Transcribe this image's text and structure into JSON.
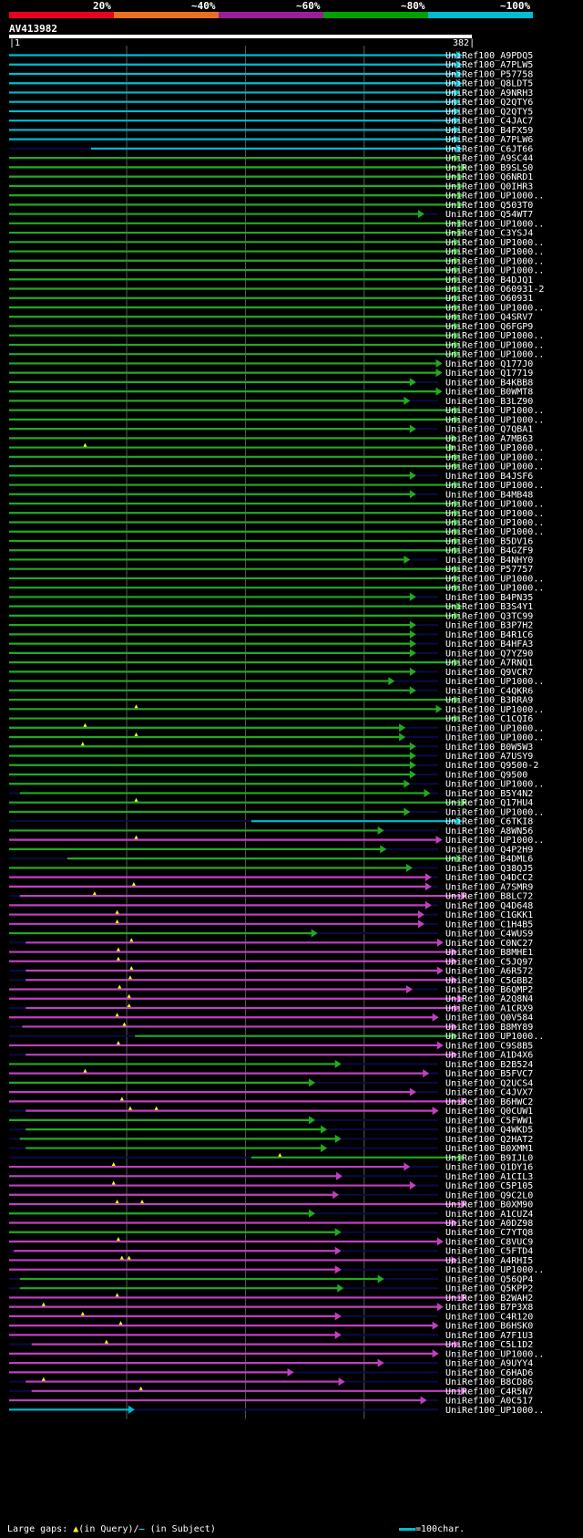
{
  "query": {
    "name": "AV413982",
    "start": "1",
    "end": "382"
  },
  "identity_scale": [
    {
      "label": "20%",
      "color": "#e8001c"
    },
    {
      "label": "~40%",
      "color": "#e87020"
    },
    {
      "label": "~60%",
      "color": "#9a1e9a"
    },
    {
      "label": "~80%",
      "color": "#00a000"
    },
    {
      "label": "~100%",
      "color": "#00bcd0"
    }
  ],
  "colors": {
    "cyan": "#00bcd0",
    "green": "#22aa22",
    "magenta": "#c040c0",
    "navy": "#0a0a48",
    "gap": "#ffff00",
    "grid": "#5a5a5a"
  },
  "footer": {
    "prefix": "Large gaps:",
    "q_text": "(in Query)/",
    "s_text": "(in Subject)",
    "scale_text": "=100char."
  },
  "chart_data": {
    "type": "alignment-map",
    "query_length": 382,
    "rows": [
      {
        "id": "UniRef100_A9PDQ5",
        "band": "cyan",
        "start": 1,
        "end": 382
      },
      {
        "id": "UniRef100_A7PLW5",
        "band": "cyan",
        "start": 1,
        "end": 382
      },
      {
        "id": "UniRef100_P57758",
        "band": "cyan",
        "start": 1,
        "end": 382
      },
      {
        "id": "UniRef100_Q8LDT5",
        "band": "cyan",
        "start": 1,
        "end": 382
      },
      {
        "id": "UniRef100_A9NRH3",
        "band": "cyan",
        "start": 1,
        "end": 380
      },
      {
        "id": "UniRef100_Q2QTY6",
        "band": "cyan",
        "start": 1,
        "end": 380
      },
      {
        "id": "UniRef100_Q2QTY5",
        "band": "cyan",
        "start": 1,
        "end": 380
      },
      {
        "id": "UniRef100_C4JAC7",
        "band": "cyan",
        "start": 1,
        "end": 380
      },
      {
        "id": "UniRef100_B4FX59",
        "band": "cyan",
        "start": 1,
        "end": 380
      },
      {
        "id": "UniRef100_A7PLW6",
        "band": "cyan",
        "start": 1,
        "end": 380
      },
      {
        "id": "UniRef100_C6JT66",
        "band": "cyan",
        "start": 70,
        "end": 382
      },
      {
        "id": "UniRef100_A9SC44",
        "band": "green",
        "start": 1,
        "end": 380
      },
      {
        "id": "UniRef100_B9SLS0",
        "band": "green",
        "start": 1,
        "end": 386
      },
      {
        "id": "UniRef100_Q6NRD1",
        "band": "green",
        "start": 1,
        "end": 383
      },
      {
        "id": "UniRef100_Q0IHR3",
        "band": "green",
        "start": 1,
        "end": 383
      },
      {
        "id": "UniRef100_UP1000..",
        "band": "green",
        "start": 1,
        "end": 383
      },
      {
        "id": "UniRef100_Q503T0",
        "band": "green",
        "start": 1,
        "end": 383
      },
      {
        "id": "UniRef100_Q54WT7",
        "band": "green",
        "start": 1,
        "end": 350
      },
      {
        "id": "UniRef100_UP1000..",
        "band": "green",
        "start": 1,
        "end": 383
      },
      {
        "id": "UniRef100_C3YSJ4",
        "band": "green",
        "start": 1,
        "end": 383
      },
      {
        "id": "UniRef100_UP1000..",
        "band": "green",
        "start": 1,
        "end": 380
      },
      {
        "id": "UniRef100_UP1000..",
        "band": "green",
        "start": 1,
        "end": 380
      },
      {
        "id": "UniRef100_UP1000..",
        "band": "green",
        "start": 1,
        "end": 380
      },
      {
        "id": "UniRef100_UP1000..",
        "band": "green",
        "start": 1,
        "end": 380
      },
      {
        "id": "UniRef100_B4DJQ1",
        "band": "green",
        "start": 1,
        "end": 380
      },
      {
        "id": "UniRef100_O60931-2",
        "band": "green",
        "start": 1,
        "end": 380
      },
      {
        "id": "UniRef100_O60931",
        "band": "green",
        "start": 1,
        "end": 380
      },
      {
        "id": "UniRef100_UP1000..",
        "band": "green",
        "start": 1,
        "end": 380
      },
      {
        "id": "UniRef100_Q4SRV7",
        "band": "green",
        "start": 1,
        "end": 380
      },
      {
        "id": "UniRef100_Q6FGP9",
        "band": "green",
        "start": 1,
        "end": 380
      },
      {
        "id": "UniRef100_UP1000..",
        "band": "green",
        "start": 1,
        "end": 380
      },
      {
        "id": "UniRef100_UP1000..",
        "band": "green",
        "start": 1,
        "end": 380
      },
      {
        "id": "UniRef100_UP1000..",
        "band": "green",
        "start": 1,
        "end": 380
      },
      {
        "id": "UniRef100_Q177J0",
        "band": "green",
        "start": 1,
        "end": 365
      },
      {
        "id": "UniRef100_Q17719",
        "band": "green",
        "start": 1,
        "end": 365
      },
      {
        "id": "UniRef100_B4KBB8",
        "band": "green",
        "start": 1,
        "end": 343
      },
      {
        "id": "UniRef100_B0WMT8",
        "band": "green",
        "start": 1,
        "end": 365
      },
      {
        "id": "UniRef100_B3LZ90",
        "band": "green",
        "start": 1,
        "end": 338
      },
      {
        "id": "UniRef100_UP1000..",
        "band": "green",
        "start": 1,
        "end": 380
      },
      {
        "id": "UniRef100_UP1000..",
        "band": "green",
        "start": 1,
        "end": 380
      },
      {
        "id": "UniRef100_Q7QBA1",
        "band": "green",
        "start": 1,
        "end": 343
      },
      {
        "id": "UniRef100_A7MB63",
        "band": "green",
        "start": 1,
        "end": 378
      },
      {
        "id": "UniRef100_UP1000..",
        "band": "green",
        "start": 1,
        "end": 376,
        "gaps": [
          65
        ]
      },
      {
        "id": "UniRef100_UP1000..",
        "band": "green",
        "start": 1,
        "end": 380
      },
      {
        "id": "UniRef100_UP1000..",
        "band": "green",
        "start": 1,
        "end": 380
      },
      {
        "id": "UniRef100_B4JSF6",
        "band": "green",
        "start": 1,
        "end": 343
      },
      {
        "id": "UniRef100_UP1000..",
        "band": "green",
        "start": 1,
        "end": 380
      },
      {
        "id": "UniRef100_B4MB48",
        "band": "green",
        "start": 1,
        "end": 343
      },
      {
        "id": "UniRef100_UP1000..",
        "band": "green",
        "start": 1,
        "end": 380
      },
      {
        "id": "UniRef100_UP1000..",
        "band": "green",
        "start": 1,
        "end": 380
      },
      {
        "id": "UniRef100_UP1000..",
        "band": "green",
        "start": 1,
        "end": 380
      },
      {
        "id": "UniRef100_UP1000..",
        "band": "green",
        "start": 1,
        "end": 380
      },
      {
        "id": "UniRef100_B5DV16",
        "band": "green",
        "start": 1,
        "end": 380
      },
      {
        "id": "UniRef100_B4GZF9",
        "band": "green",
        "start": 1,
        "end": 380
      },
      {
        "id": "UniRef100_B4NHY0",
        "band": "green",
        "start": 1,
        "end": 338
      },
      {
        "id": "UniRef100_P57757",
        "band": "green",
        "start": 1,
        "end": 380
      },
      {
        "id": "UniRef100_UP1000..",
        "band": "green",
        "start": 1,
        "end": 380
      },
      {
        "id": "UniRef100_UP1000..",
        "band": "green",
        "start": 1,
        "end": 380
      },
      {
        "id": "UniRef100_B4PN35",
        "band": "green",
        "start": 1,
        "end": 343
      },
      {
        "id": "UniRef100_B3S4Y1",
        "band": "green",
        "start": 1,
        "end": 382
      },
      {
        "id": "UniRef100_Q3TC99",
        "band": "green",
        "start": 1,
        "end": 380
      },
      {
        "id": "UniRef100_B3P7H2",
        "band": "green",
        "start": 1,
        "end": 343
      },
      {
        "id": "UniRef100_B4R1C6",
        "band": "green",
        "start": 1,
        "end": 343
      },
      {
        "id": "UniRef100_B4HFA3",
        "band": "green",
        "start": 1,
        "end": 343
      },
      {
        "id": "UniRef100_Q7YZ90",
        "band": "green",
        "start": 1,
        "end": 343
      },
      {
        "id": "UniRef100_A7RNQ1",
        "band": "green",
        "start": 1,
        "end": 380
      },
      {
        "id": "UniRef100_Q9VCR7",
        "band": "green",
        "start": 1,
        "end": 343
      },
      {
        "id": "UniRef100_UP1000..",
        "band": "green",
        "start": 1,
        "end": 325
      },
      {
        "id": "UniRef100_C4QKR6",
        "band": "green",
        "start": 1,
        "end": 343
      },
      {
        "id": "UniRef100_B3RRA9",
        "band": "green",
        "start": 1,
        "end": 380
      },
      {
        "id": "UniRef100_UP1000..",
        "band": "green",
        "start": 1,
        "end": 365,
        "gaps": [
          108
        ]
      },
      {
        "id": "UniRef100_C1CQI6",
        "band": "green",
        "start": 1,
        "end": 380
      },
      {
        "id": "UniRef100_UP1000..",
        "band": "green",
        "start": 1,
        "end": 334,
        "gaps": [
          65
        ]
      },
      {
        "id": "UniRef100_UP1000..",
        "band": "green",
        "start": 1,
        "end": 334,
        "gaps": [
          108
        ]
      },
      {
        "id": "UniRef100_B0W5W3",
        "band": "green",
        "start": 1,
        "end": 343,
        "gaps": [
          63
        ]
      },
      {
        "id": "UniRef100_A7USY9",
        "band": "green",
        "start": 1,
        "end": 343
      },
      {
        "id": "UniRef100_Q9500-2",
        "band": "green",
        "start": 1,
        "end": 343
      },
      {
        "id": "UniRef100_Q9500",
        "band": "green",
        "start": 1,
        "end": 343
      },
      {
        "id": "UniRef100_UP1000..",
        "band": "green",
        "start": 1,
        "end": 338
      },
      {
        "id": "UniRef100_B5Y4N2",
        "band": "green",
        "start": 10,
        "end": 355
      },
      {
        "id": "UniRef100_Q17HU4",
        "band": "green",
        "start": 1,
        "end": 386,
        "gaps": [
          108
        ]
      },
      {
        "id": "UniRef100_UP1000..",
        "band": "green",
        "start": 1,
        "end": 338
      },
      {
        "id": "UniRef100_C6TKI8",
        "band": "cyan",
        "start": 205,
        "end": 382
      },
      {
        "id": "UniRef100_A8WN56",
        "band": "green",
        "start": 1,
        "end": 316
      },
      {
        "id": "UniRef100_UP1000..",
        "band": "magenta",
        "start": 1,
        "end": 365,
        "gaps": [
          108
        ]
      },
      {
        "id": "UniRef100_Q4P2H9",
        "band": "green",
        "start": 1,
        "end": 318
      },
      {
        "id": "UniRef100_B4DML6",
        "band": "green",
        "start": 50,
        "end": 382
      },
      {
        "id": "UniRef100_Q38QJ5",
        "band": "green",
        "start": 1,
        "end": 340
      },
      {
        "id": "UniRef100_Q4DCC2",
        "band": "magenta",
        "start": 1,
        "end": 356
      },
      {
        "id": "UniRef100_A7SMR9",
        "band": "magenta",
        "start": 1,
        "end": 356,
        "gaps": [
          106
        ]
      },
      {
        "id": "UniRef100_B8LC72",
        "band": "magenta",
        "start": 10,
        "end": 388,
        "gaps": [
          73
        ]
      },
      {
        "id": "UniRef100_Q4D648",
        "band": "magenta",
        "start": 1,
        "end": 356
      },
      {
        "id": "UniRef100_C1GKK1",
        "band": "magenta",
        "start": 1,
        "end": 350,
        "gaps": [
          92
        ]
      },
      {
        "id": "UniRef100_C1H4B5",
        "band": "magenta",
        "start": 1,
        "end": 350,
        "gaps": [
          92
        ]
      },
      {
        "id": "UniRef100_C4WUS9",
        "band": "green",
        "start": 1,
        "end": 260
      },
      {
        "id": "UniRef100_C0NC27",
        "band": "magenta",
        "start": 15,
        "end": 366,
        "gaps": [
          104
        ]
      },
      {
        "id": "UniRef100_B8MHE1",
        "band": "magenta",
        "start": 1,
        "end": 378,
        "gaps": [
          93
        ]
      },
      {
        "id": "UniRef100_C5JQ97",
        "band": "magenta",
        "start": 1,
        "end": 378,
        "gaps": [
          93
        ]
      },
      {
        "id": "UniRef100_A6R572",
        "band": "magenta",
        "start": 15,
        "end": 366,
        "gaps": [
          104
        ]
      },
      {
        "id": "UniRef100_C5GBB2",
        "band": "magenta",
        "start": 15,
        "end": 378,
        "gaps": [
          103
        ]
      },
      {
        "id": "UniRef100_B6QMP2",
        "band": "magenta",
        "start": 1,
        "end": 340,
        "gaps": [
          94
        ]
      },
      {
        "id": "UniRef100_A2Q8N4",
        "band": "magenta",
        "start": 1,
        "end": 383,
        "gaps": [
          102
        ]
      },
      {
        "id": "UniRef100_A1CRX9",
        "band": "magenta",
        "start": 15,
        "end": 380,
        "gaps": [
          102
        ]
      },
      {
        "id": "UniRef100_Q0V584",
        "band": "magenta",
        "start": 1,
        "end": 362,
        "gaps": [
          92
        ]
      },
      {
        "id": "UniRef100_B8MY89",
        "band": "magenta",
        "start": 12,
        "end": 378,
        "gaps": [
          98
        ]
      },
      {
        "id": "UniRef100_UP1000..",
        "band": "green",
        "start": 107,
        "end": 378
      },
      {
        "id": "UniRef100_C9S8B5",
        "band": "magenta",
        "start": 1,
        "end": 366,
        "gaps": [
          93
        ]
      },
      {
        "id": "UniRef100_A1D4X6",
        "band": "magenta",
        "start": 15,
        "end": 378
      },
      {
        "id": "UniRef100_B2B524",
        "band": "green",
        "start": 1,
        "end": 280
      },
      {
        "id": "UniRef100_B5FVC7",
        "band": "magenta",
        "start": 1,
        "end": 354,
        "gaps": [
          65
        ]
      },
      {
        "id": "UniRef100_Q2UCS4",
        "band": "green",
        "start": 1,
        "end": 258
      },
      {
        "id": "UniRef100_C4JVX7",
        "band": "magenta",
        "start": 1,
        "end": 343
      },
      {
        "id": "UniRef100_B6HWC2",
        "band": "magenta",
        "start": 1,
        "end": 386,
        "gaps": [
          96
        ]
      },
      {
        "id": "UniRef100_Q0CUW1",
        "band": "magenta",
        "start": 15,
        "end": 362,
        "gaps": [
          103,
          125
        ]
      },
      {
        "id": "UniRef100_C5FWW1",
        "band": "green",
        "start": 1,
        "end": 258
      },
      {
        "id": "UniRef100_Q4WKD5",
        "band": "green",
        "start": 15,
        "end": 268
      },
      {
        "id": "UniRef100_Q2HAT2",
        "band": "green",
        "start": 10,
        "end": 280
      },
      {
        "id": "UniRef100_B0XMM1",
        "band": "green",
        "start": 15,
        "end": 268
      },
      {
        "id": "UniRef100_B9IJL0",
        "band": "green",
        "start": 205,
        "end": 384,
        "gaps": [
          229
        ]
      },
      {
        "id": "UniRef100_Q1DY16",
        "band": "magenta",
        "start": 1,
        "end": 338,
        "gaps": [
          89
        ]
      },
      {
        "id": "UniRef100_A1CIL3",
        "band": "magenta",
        "start": 1,
        "end": 281
      },
      {
        "id": "UniRef100_C5P105",
        "band": "magenta",
        "start": 1,
        "end": 343,
        "gaps": [
          89
        ]
      },
      {
        "id": "UniRef100_Q9C2L0",
        "band": "magenta",
        "start": 1,
        "end": 278
      },
      {
        "id": "UniRef100_B0XM90",
        "band": "magenta",
        "start": 1,
        "end": 388,
        "gaps": [
          92,
          113
        ]
      },
      {
        "id": "UniRef100_A1CUZ4",
        "band": "green",
        "start": 1,
        "end": 258
      },
      {
        "id": "UniRef100_A0DZ98",
        "band": "magenta",
        "start": 1,
        "end": 378
      },
      {
        "id": "UniRef100_C7YTQ8",
        "band": "green",
        "start": 1,
        "end": 280
      },
      {
        "id": "UniRef100_C8VUC9",
        "band": "magenta",
        "start": 1,
        "end": 366,
        "gaps": [
          93
        ]
      },
      {
        "id": "UniRef100_C5FTD4",
        "band": "magenta",
        "start": 5,
        "end": 280
      },
      {
        "id": "UniRef100_A4RHI5",
        "band": "magenta",
        "start": 1,
        "end": 378,
        "gaps": [
          96,
          102
        ]
      },
      {
        "id": "UniRef100_UP1000..",
        "band": "magenta",
        "start": 1,
        "end": 280
      },
      {
        "id": "UniRef100_Q56QP4",
        "band": "green",
        "start": 10,
        "end": 316
      },
      {
        "id": "UniRef100_Q5KPP2",
        "band": "green",
        "start": 10,
        "end": 282
      },
      {
        "id": "UniRef100_B2WAH2",
        "band": "magenta",
        "start": 1,
        "end": 386,
        "gaps": [
          92
        ]
      },
      {
        "id": "UniRef100_B7P3X8",
        "band": "magenta",
        "start": 1,
        "end": 366,
        "gaps": [
          30
        ]
      },
      {
        "id": "UniRef100_C4R120",
        "band": "magenta",
        "start": 1,
        "end": 280,
        "gaps": [
          63
        ]
      },
      {
        "id": "UniRef100_B6HSK0",
        "band": "magenta",
        "start": 1,
        "end": 362,
        "gaps": [
          95
        ]
      },
      {
        "id": "UniRef100_A7F1U3",
        "band": "magenta",
        "start": 1,
        "end": 280
      },
      {
        "id": "UniRef100_C5L1D2",
        "band": "magenta",
        "start": 20,
        "end": 380,
        "gaps": [
          83
        ]
      },
      {
        "id": "UniRef100_UP1000..",
        "band": "magenta",
        "start": 1,
        "end": 362
      },
      {
        "id": "UniRef100_A9UYY4",
        "band": "magenta",
        "start": 1,
        "end": 316
      },
      {
        "id": "UniRef100_C6HAD6",
        "band": "magenta",
        "start": 1,
        "end": 240
      },
      {
        "id": "UniRef100_B8CD86",
        "band": "magenta",
        "start": 15,
        "end": 283,
        "gaps": [
          30
        ]
      },
      {
        "id": "UniRef100_C4R5N7",
        "band": "magenta",
        "start": 20,
        "end": 386,
        "gaps": [
          112
        ]
      },
      {
        "id": "UniRef100_A0C517",
        "band": "magenta",
        "start": 1,
        "end": 352
      },
      {
        "id": "UniRef100_UP1000..",
        "band": "cyan",
        "start": 1,
        "end": 106
      }
    ]
  }
}
